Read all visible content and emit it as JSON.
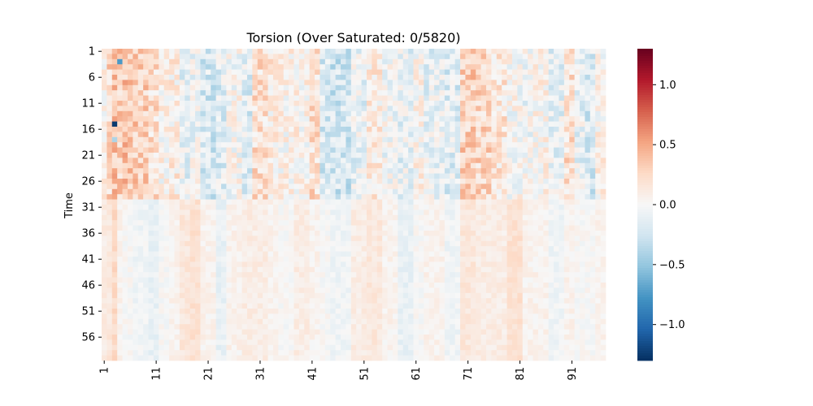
{
  "chart_data": {
    "type": "heatmap",
    "title": "Torsion (Over Saturated: 0/5820)",
    "xlabel": "",
    "ylabel": "Time",
    "n_cols": 97,
    "n_rows": 60,
    "x_tick_labels": [
      "1",
      "11",
      "21",
      "31",
      "41",
      "51",
      "61",
      "71",
      "81",
      "91"
    ],
    "y_tick_labels": [
      "1",
      "6",
      "11",
      "16",
      "21",
      "26",
      "31",
      "36",
      "41",
      "46",
      "51",
      "56"
    ],
    "colormap": "RdBu_r",
    "vmin": -1.3,
    "vmax": 1.3,
    "colorbar": {
      "tick_values": [
        1.0,
        0.5,
        0.0,
        -0.5,
        -1.0
      ],
      "tick_labels": [
        "1.0",
        "0.5",
        "0.0",
        "−0.5",
        "−1.0"
      ]
    },
    "notable_cells": [
      {
        "time": 3,
        "column": 4,
        "value": -0.75
      },
      {
        "time": 15,
        "column": 3,
        "value": -1.25
      },
      {
        "time": 18,
        "column": 3,
        "value": -0.4
      },
      {
        "time": 20,
        "column": 3,
        "value": 0.55
      },
      {
        "time": 26,
        "column": 3,
        "value": 0.5
      }
    ],
    "column_trends": [
      {
        "start": 1,
        "end": 1,
        "top": 0.1,
        "bottom": 0.1
      },
      {
        "start": 2,
        "end": 2,
        "top": 0.25,
        "bottom": 0.15
      },
      {
        "start": 3,
        "end": 3,
        "top": 0.35,
        "bottom": 0.25
      },
      {
        "start": 4,
        "end": 4,
        "top": 0.3,
        "bottom": 0.05
      },
      {
        "start": 5,
        "end": 6,
        "top": 0.35,
        "bottom": 0.0
      },
      {
        "start": 7,
        "end": 9,
        "top": 0.3,
        "bottom": -0.05
      },
      {
        "start": 10,
        "end": 11,
        "top": 0.2,
        "bottom": -0.1
      },
      {
        "start": 12,
        "end": 13,
        "top": 0.05,
        "bottom": 0.0
      },
      {
        "start": 14,
        "end": 15,
        "top": 0.1,
        "bottom": 0.05
      },
      {
        "start": 16,
        "end": 17,
        "top": -0.1,
        "bottom": 0.15
      },
      {
        "start": 18,
        "end": 19,
        "top": -0.05,
        "bottom": 0.2
      },
      {
        "start": 20,
        "end": 22,
        "top": -0.2,
        "bottom": 0.05
      },
      {
        "start": 23,
        "end": 24,
        "top": -0.15,
        "bottom": -0.1
      },
      {
        "start": 25,
        "end": 27,
        "top": 0.0,
        "bottom": 0.05
      },
      {
        "start": 28,
        "end": 29,
        "top": -0.15,
        "bottom": 0.1
      },
      {
        "start": 30,
        "end": 32,
        "top": 0.2,
        "bottom": 0.1
      },
      {
        "start": 33,
        "end": 34,
        "top": 0.1,
        "bottom": 0.05
      },
      {
        "start": 35,
        "end": 37,
        "top": 0.05,
        "bottom": 0.0
      },
      {
        "start": 38,
        "end": 40,
        "top": 0.05,
        "bottom": 0.1
      },
      {
        "start": 41,
        "end": 42,
        "top": 0.2,
        "bottom": 0.05
      },
      {
        "start": 43,
        "end": 44,
        "top": -0.2,
        "bottom": 0.0
      },
      {
        "start": 45,
        "end": 48,
        "top": -0.25,
        "bottom": -0.05
      },
      {
        "start": 49,
        "end": 51,
        "top": -0.1,
        "bottom": 0.1
      },
      {
        "start": 52,
        "end": 54,
        "top": 0.1,
        "bottom": 0.15
      },
      {
        "start": 55,
        "end": 57,
        "top": -0.05,
        "bottom": 0.05
      },
      {
        "start": 58,
        "end": 60,
        "top": -0.1,
        "bottom": -0.1
      },
      {
        "start": 61,
        "end": 62,
        "top": 0.05,
        "bottom": 0.0
      },
      {
        "start": 63,
        "end": 66,
        "top": -0.1,
        "bottom": 0.05
      },
      {
        "start": 67,
        "end": 69,
        "top": -0.15,
        "bottom": -0.05
      },
      {
        "start": 70,
        "end": 72,
        "top": 0.3,
        "bottom": 0.15
      },
      {
        "start": 73,
        "end": 75,
        "top": 0.25,
        "bottom": 0.1
      },
      {
        "start": 76,
        "end": 78,
        "top": 0.15,
        "bottom": 0.1
      },
      {
        "start": 79,
        "end": 81,
        "top": 0.0,
        "bottom": 0.2
      },
      {
        "start": 82,
        "end": 83,
        "top": -0.05,
        "bottom": 0.05
      },
      {
        "start": 84,
        "end": 86,
        "top": 0.05,
        "bottom": 0.05
      },
      {
        "start": 87,
        "end": 89,
        "top": -0.1,
        "bottom": -0.05
      },
      {
        "start": 90,
        "end": 91,
        "top": 0.2,
        "bottom": 0.05
      },
      {
        "start": 92,
        "end": 93,
        "top": -0.1,
        "bottom": 0.0
      },
      {
        "start": 94,
        "end": 95,
        "top": -0.2,
        "bottom": 0.0
      },
      {
        "start": 96,
        "end": 97,
        "top": 0.05,
        "bottom": 0.05
      }
    ]
  }
}
